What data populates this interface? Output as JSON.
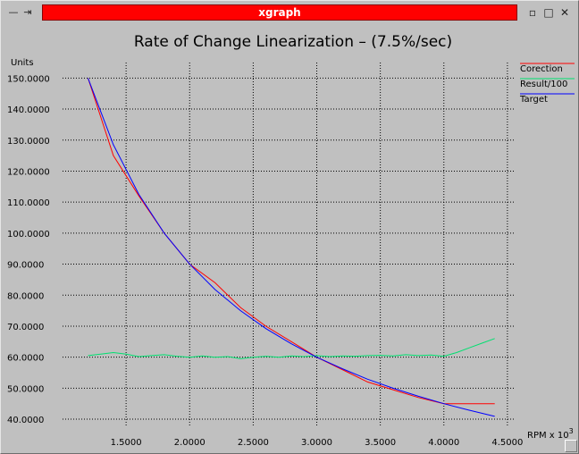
{
  "window": {
    "title": "xgraph",
    "left_icons": [
      "—",
      "⇥"
    ],
    "controls": [
      "▫",
      "□",
      "✕"
    ]
  },
  "chart_data": {
    "type": "line",
    "title": "Rate of Change Linearization – (7.5%/sec)",
    "ylabel": "Units",
    "xlabel": "RPM x 10",
    "xlabel_exponent": "3",
    "xlim": [
      1.0,
      4.55
    ],
    "ylim": [
      38.0,
      155.0
    ],
    "xticks": [
      1.5,
      2.0,
      2.5,
      3.0,
      3.5,
      4.0,
      4.5
    ],
    "xtick_labels": [
      "1.5000",
      "2.0000",
      "2.5000",
      "3.0000",
      "3.5000",
      "4.0000",
      "4.5000"
    ],
    "yticks": [
      40,
      50,
      60,
      70,
      80,
      90,
      100,
      110,
      120,
      130,
      140,
      150
    ],
    "ytick_labels": [
      "40.0000",
      "50.0000",
      "60.0000",
      "70.0000",
      "80.0000",
      "90.0000",
      "100.0000",
      "110.0000",
      "120.0000",
      "130.0000",
      "140.0000",
      "150.0000"
    ],
    "grid": true,
    "legend_placement": "top-right",
    "series": [
      {
        "name": "Corection",
        "color": "#ff0000",
        "x": [
          1.2,
          1.4,
          1.6,
          1.8,
          2.0,
          2.2,
          2.4,
          2.6,
          2.8,
          3.0,
          3.2,
          3.4,
          3.6,
          3.8,
          4.0,
          4.2,
          4.4
        ],
        "y": [
          150,
          125,
          112,
          100,
          90,
          84,
          76,
          70,
          65,
          60,
          56,
          52,
          49.5,
          47,
          45,
          45,
          45
        ]
      },
      {
        "name": "Result/100",
        "color": "#00e070",
        "x": [
          1.2,
          1.3,
          1.4,
          1.5,
          1.6,
          1.7,
          1.8,
          1.9,
          2.0,
          2.1,
          2.2,
          2.3,
          2.4,
          2.5,
          2.6,
          2.7,
          2.8,
          2.9,
          3.0,
          3.1,
          3.2,
          3.3,
          3.4,
          3.5,
          3.6,
          3.7,
          3.8,
          3.9,
          4.0,
          4.1,
          4.2,
          4.3,
          4.4
        ],
        "y": [
          60.5,
          61,
          61.5,
          61,
          60.2,
          60.5,
          60.8,
          60.3,
          60,
          60.4,
          60,
          60.2,
          59.5,
          60,
          60.3,
          60,
          60.4,
          60.2,
          60.5,
          60.2,
          60.4,
          60.3,
          60.5,
          60.6,
          60.4,
          60.8,
          60.5,
          60.7,
          60.3,
          61.5,
          63,
          64.5,
          66
        ]
      },
      {
        "name": "Target",
        "color": "#0000ff",
        "x": [
          1.2,
          1.4,
          1.6,
          1.8,
          2.0,
          2.2,
          2.4,
          2.6,
          2.8,
          3.0,
          3.2,
          3.4,
          3.6,
          3.8,
          4.0,
          4.2,
          4.4
        ],
        "y": [
          150,
          128.5,
          112.5,
          100,
          90,
          81.8,
          75,
          69.2,
          64.3,
          60,
          56.3,
          52.9,
          50,
          47.4,
          45,
          42.9,
          40.9
        ]
      }
    ]
  }
}
